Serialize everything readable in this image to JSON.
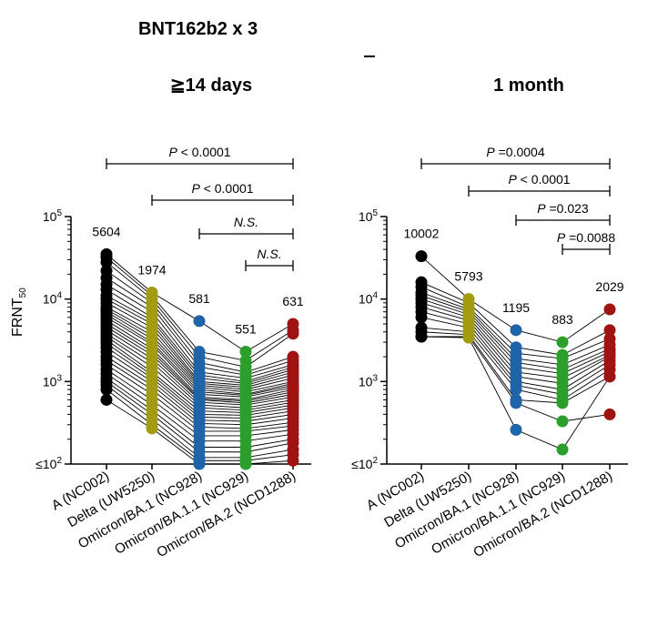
{
  "figure": {
    "title": "BNT162b2  x 3",
    "ylabel_main": "FRNT",
    "ylabel_sub": "50"
  },
  "chart_data": [
    {
      "type": "scatter",
      "panel_title": "≧14 days",
      "ylabel": "FRNT50",
      "y_scale": "log",
      "ylim": [
        100,
        100000
      ],
      "y_ticks": [
        {
          "base": "10",
          "exp": "5",
          "prefix": ""
        },
        {
          "base": "10",
          "exp": "4",
          "prefix": ""
        },
        {
          "base": "10",
          "exp": "3",
          "prefix": ""
        },
        {
          "base": "10",
          "exp": "2",
          "prefix": "≤"
        }
      ],
      "categories": [
        "A (NC002)",
        "Delta (UW5250)",
        "Omicron/BA.1 (NC928)",
        "Omicron/BA.1.1 (NC929)",
        "Omicron/BA.2 (NCD1288)"
      ],
      "colors": [
        "#000000",
        "#a39b14",
        "#1f63a8",
        "#2aa02a",
        "#a01313"
      ],
      "geometric_means": [
        "5604",
        "1974",
        "581",
        "551",
        "631"
      ],
      "comparisons": [
        {
          "label_p": "P",
          "label_rest": " < 0.0001",
          "from": 0,
          "to": 4
        },
        {
          "label_p": "P",
          "label_rest": " < 0.0001",
          "from": 1,
          "to": 4
        },
        {
          "label_p": "N.S.",
          "label_rest": "",
          "from": 2,
          "to": 4
        },
        {
          "label_p": "N.S.",
          "label_rest": "",
          "from": 3,
          "to": 4
        }
      ],
      "subjects": [
        [
          35000,
          12000,
          5400,
          2300,
          5000
        ],
        [
          32000,
          11000,
          2300,
          1800,
          4200
        ],
        [
          28000,
          10000,
          2000,
          1500,
          3800
        ],
        [
          22000,
          9000,
          1700,
          1300,
          2000
        ],
        [
          18000,
          8000,
          1500,
          1200,
          1800
        ],
        [
          15000,
          7000,
          1300,
          1100,
          1600
        ],
        [
          13000,
          6000,
          1200,
          1000,
          1500
        ],
        [
          11000,
          5500,
          1100,
          950,
          1400
        ],
        [
          10000,
          5000,
          1000,
          900,
          1300
        ],
        [
          9000,
          4500,
          950,
          850,
          1200
        ],
        [
          8000,
          4000,
          900,
          800,
          1100
        ],
        [
          7500,
          3600,
          850,
          750,
          1000
        ],
        [
          7000,
          3300,
          800,
          700,
          950
        ],
        [
          6500,
          3000,
          750,
          680,
          900
        ],
        [
          6000,
          2800,
          700,
          650,
          850
        ],
        [
          5500,
          2500,
          650,
          600,
          800
        ],
        [
          5000,
          2300,
          620,
          580,
          750
        ],
        [
          4600,
          2100,
          600,
          550,
          700
        ],
        [
          4200,
          1900,
          560,
          520,
          650
        ],
        [
          3800,
          1700,
          520,
          480,
          600
        ],
        [
          3500,
          1500,
          480,
          450,
          560
        ],
        [
          3200,
          1300,
          440,
          420,
          520
        ],
        [
          2900,
          1200,
          400,
          390,
          480
        ],
        [
          2600,
          1100,
          370,
          360,
          440
        ],
        [
          2300,
          1000,
          340,
          330,
          400
        ],
        [
          2000,
          900,
          310,
          300,
          360
        ],
        [
          1800,
          800,
          280,
          270,
          320
        ],
        [
          1600,
          700,
          250,
          250,
          290
        ],
        [
          1400,
          600,
          220,
          220,
          260
        ],
        [
          1250,
          520,
          190,
          190,
          230
        ],
        [
          1100,
          450,
          160,
          160,
          200
        ],
        [
          1000,
          400,
          140,
          140,
          180
        ],
        [
          900,
          350,
          120,
          120,
          150
        ],
        [
          800,
          300,
          110,
          110,
          130
        ],
        [
          600,
          270,
          100,
          100,
          110
        ]
      ]
    },
    {
      "type": "scatter",
      "panel_title": "1 month",
      "ylabel": "",
      "y_scale": "log",
      "ylim": [
        100,
        100000
      ],
      "y_ticks": [
        {
          "base": "10",
          "exp": "5",
          "prefix": ""
        },
        {
          "base": "10",
          "exp": "4",
          "prefix": ""
        },
        {
          "base": "10",
          "exp": "3",
          "prefix": ""
        },
        {
          "base": "10",
          "exp": "2",
          "prefix": "≤"
        }
      ],
      "categories": [
        "A (NC002)",
        "Delta (UW5250)",
        "Omicron/BA.1 (NC928)",
        "Omicron/BA.1.1 (NC929)",
        "Omicron/BA.2 (NCD1288)"
      ],
      "colors": [
        "#000000",
        "#a39b14",
        "#1f63a8",
        "#2aa02a",
        "#a01313"
      ],
      "geometric_means": [
        "10002",
        "5793",
        "1195",
        "883",
        "2029"
      ],
      "comparisons": [
        {
          "label_p": "P",
          "label_rest": " =0.0004",
          "from": 0,
          "to": 4
        },
        {
          "label_p": "P",
          "label_rest": " < 0.0001",
          "from": 1,
          "to": 4
        },
        {
          "label_p": "P",
          "label_rest": " =0.023",
          "from": 2,
          "to": 4
        },
        {
          "label_p": "P",
          "label_rest": " =0.0088",
          "from": 3,
          "to": 4
        }
      ],
      "subjects": [
        [
          33000,
          10000,
          4200,
          3000,
          7500
        ],
        [
          16000,
          9000,
          2600,
          2100,
          4200
        ],
        [
          14000,
          8000,
          2200,
          1900,
          3300
        ],
        [
          12000,
          7500,
          1900,
          1600,
          2800
        ],
        [
          11000,
          7000,
          1700,
          1400,
          2500
        ],
        [
          10000,
          6500,
          1500,
          1250,
          2300
        ],
        [
          9000,
          6000,
          1300,
          1100,
          2100
        ],
        [
          8000,
          5500,
          1150,
          950,
          2000
        ],
        [
          7000,
          5000,
          1000,
          800,
          1800
        ],
        [
          6000,
          4500,
          900,
          700,
          1600
        ],
        [
          4500,
          4000,
          800,
          600,
          1400
        ],
        [
          4000,
          3700,
          600,
          550,
          1150
        ],
        [
          3500,
          3500,
          550,
          330,
          400
        ],
        [
          3500,
          3400,
          260,
          150,
          1150
        ]
      ]
    }
  ]
}
